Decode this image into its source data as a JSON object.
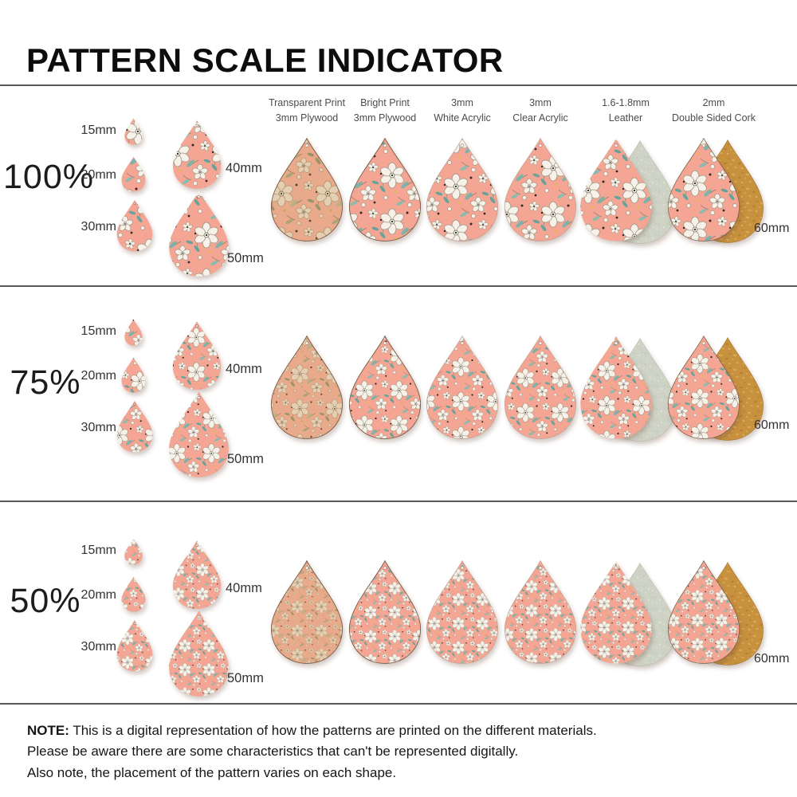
{
  "title": "PATTERN SCALE INDICATOR",
  "columns": [
    {
      "line1": "Transparent Print",
      "line2": "3mm Plywood"
    },
    {
      "line1": "Bright Print",
      "line2": "3mm Plywood"
    },
    {
      "line1": "3mm",
      "line2": "White Acrylic"
    },
    {
      "line1": "3mm",
      "line2": "Clear Acrylic"
    },
    {
      "line1": "1.6-1.8mm",
      "line2": "Leather"
    },
    {
      "line1": "2mm",
      "line2": "Double Sided Cork"
    }
  ],
  "rows": [
    {
      "percent": "100%",
      "sizes": [
        "15mm",
        "20mm",
        "30mm",
        "40mm",
        "50mm"
      ],
      "sample_size": "60mm"
    },
    {
      "percent": "75%",
      "sizes": [
        "15mm",
        "20mm",
        "30mm",
        "40mm",
        "50mm"
      ],
      "sample_size": "60mm"
    },
    {
      "percent": "50%",
      "sizes": [
        "15mm",
        "20mm",
        "30mm",
        "40mm",
        "50mm"
      ],
      "sample_size": "60mm"
    }
  ],
  "note": {
    "label": "NOTE:",
    "line1": "This is a digital representation of how the patterns are printed on the different materials.",
    "line2": "Please be aware there are some characteristics that can't be represented digitally.",
    "line3": "Also note, the placement of the pattern varies on each shape."
  },
  "colors": {
    "pattern_pink": "#F4A593",
    "flower_cream": "#F6F2E9",
    "leaf_teal": "#66A39A",
    "plywood_tan": "#E9A98B",
    "leather_suede": "#CFD3C6",
    "cork_orange": "#C8913E",
    "divider_gray": "#595959",
    "text_black": "#111111"
  }
}
